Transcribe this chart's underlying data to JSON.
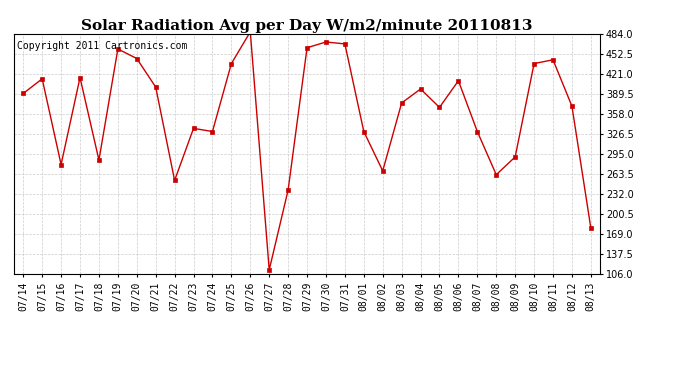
{
  "title": "Solar Radiation Avg per Day W/m2/minute 20110813",
  "copyright": "Copyright 2011 Cartronics.com",
  "dates": [
    "07/14",
    "07/15",
    "07/16",
    "07/17",
    "07/18",
    "07/19",
    "07/20",
    "07/21",
    "07/22",
    "07/23",
    "07/24",
    "07/25",
    "07/26",
    "07/27",
    "07/28",
    "07/29",
    "07/30",
    "07/31",
    "08/01",
    "08/02",
    "08/03",
    "08/04",
    "08/05",
    "08/06",
    "08/07",
    "08/08",
    "08/09",
    "08/10",
    "08/11",
    "08/12",
    "08/13"
  ],
  "values": [
    390,
    413,
    278,
    415,
    285,
    460,
    445,
    400,
    253,
    335,
    330,
    437,
    487,
    112,
    238,
    462,
    471,
    468,
    330,
    268,
    375,
    397,
    368,
    410,
    330,
    262,
    290,
    437,
    443,
    370,
    178
  ],
  "line_color": "#cc0000",
  "marker_color": "#cc0000",
  "bg_color": "#ffffff",
  "grid_color": "#cccccc",
  "ylim_min": 106.0,
  "ylim_max": 484.0,
  "yticks": [
    106.0,
    137.5,
    169.0,
    200.5,
    232.0,
    263.5,
    295.0,
    326.5,
    358.0,
    389.5,
    421.0,
    452.5,
    484.0
  ],
  "title_fontsize": 11,
  "copyright_fontsize": 7,
  "tick_fontsize": 7
}
